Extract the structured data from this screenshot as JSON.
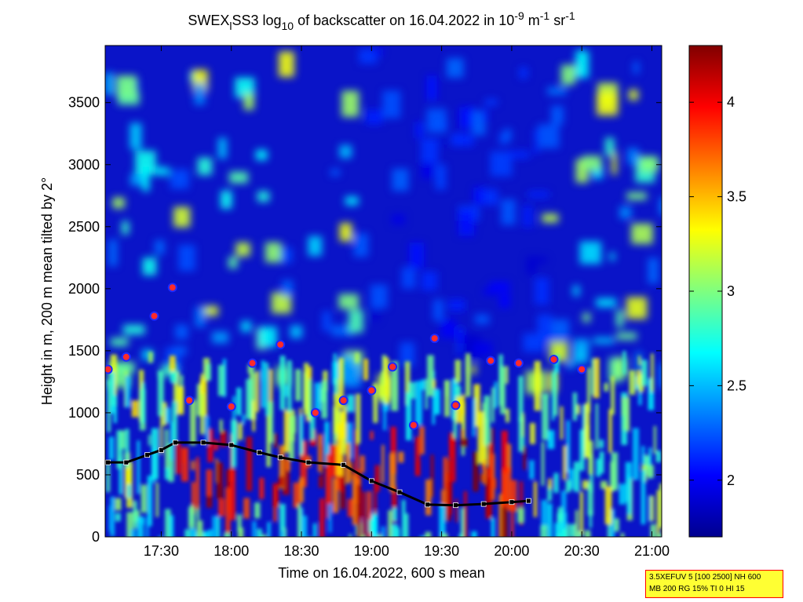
{
  "chart_data": {
    "type": "heatmap",
    "title": {
      "pre": "SWEX",
      "sub1": "l",
      "mid": "SS3 log",
      "sub2": "10",
      "mid2": " of backscatter on 16.04.2022 in 10",
      "sup1": "-9",
      "mid3": " m",
      "sup2": "-1",
      "mid4": " sr",
      "sup3": "-1"
    },
    "xlabel": "Time on 16.04.2022, 600 s mean",
    "ylabel": "Height in m, 200 m mean tilted by 2°",
    "x_ticks": [
      "17:30",
      "18:00",
      "18:30",
      "19:00",
      "19:30",
      "20:00",
      "20:30",
      "21:00"
    ],
    "x_tick_hours": [
      17.5,
      18.0,
      18.5,
      19.0,
      19.5,
      20.0,
      20.5,
      21.0
    ],
    "xlim_hours": [
      17.1,
      21.07
    ],
    "y_ticks": [
      0,
      500,
      1000,
      1500,
      2000,
      2500,
      3000,
      3500
    ],
    "ylim": [
      0,
      3960
    ],
    "colorbar": {
      "range": [
        1.7,
        4.3
      ],
      "ticks": [
        2,
        2.5,
        3,
        3.5,
        4
      ],
      "tick_labels": [
        "2",
        "2.5",
        "3",
        "3.5",
        "4"
      ],
      "colormap": "jet"
    },
    "colors": {
      "cloud_marker_fill": "#ff2a2a",
      "cloud_marker_ring": "#1e2aff",
      "cloud_marker_halo": "#e8e8ff",
      "mixing_layer_marker": "#000000"
    },
    "mixing_layer": [
      [
        17.12,
        600
      ],
      [
        17.25,
        600
      ],
      [
        17.4,
        660
      ],
      [
        17.5,
        700
      ],
      [
        17.6,
        760
      ],
      [
        17.8,
        760
      ],
      [
        18.0,
        740
      ],
      [
        18.2,
        680
      ],
      [
        18.35,
        640
      ],
      [
        18.55,
        600
      ],
      [
        18.8,
        580
      ],
      [
        19.0,
        450
      ],
      [
        19.2,
        360
      ],
      [
        19.4,
        260
      ],
      [
        19.6,
        255
      ],
      [
        19.8,
        265
      ],
      [
        20.0,
        280
      ],
      [
        20.12,
        290
      ]
    ],
    "cloud_layers": [
      [
        17.12,
        1350
      ],
      [
        17.25,
        1450
      ],
      [
        17.45,
        1780
      ],
      [
        17.58,
        2010
      ],
      [
        17.7,
        1100
      ],
      [
        18.0,
        1050
      ],
      [
        18.15,
        1400
      ],
      [
        18.35,
        1550
      ],
      [
        18.6,
        1000
      ],
      [
        18.8,
        1100
      ],
      [
        19.0,
        1180
      ],
      [
        19.15,
        1370
      ],
      [
        19.3,
        900
      ],
      [
        19.45,
        1600
      ],
      [
        19.6,
        1060
      ],
      [
        19.85,
        1420
      ],
      [
        20.05,
        1400
      ],
      [
        20.3,
        1430
      ],
      [
        20.5,
        1350
      ]
    ]
  },
  "info_box": {
    "line1": "3.5XEFUV 5 [100 2500] NH 600",
    "line2": "MB 200 RG 15% TI 0 HI 15"
  }
}
